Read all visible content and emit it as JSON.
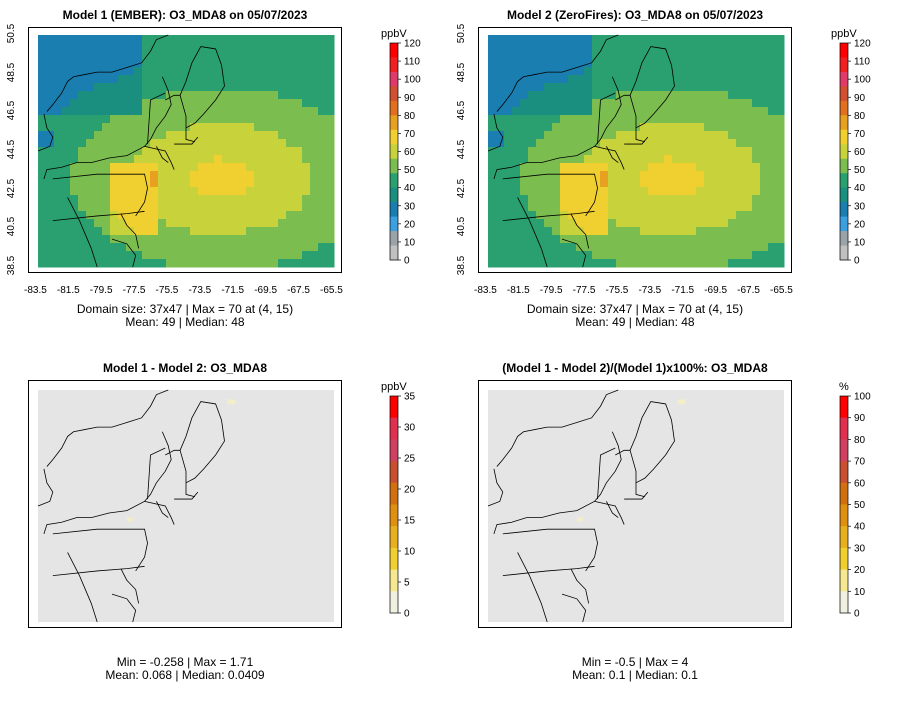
{
  "panels": [
    {
      "title": "Model 1 (EMBER): O3_MDA8 on 05/07/2023",
      "unit": "ppbV",
      "colorbar_ticks": [
        "120",
        "110",
        "100",
        "90",
        "80",
        "70",
        "60",
        "50",
        "40",
        "30",
        "20",
        "10",
        "0"
      ],
      "colorbar_palette": "ppb",
      "field": "concentration",
      "stats_line1": "Domain size: 37x47 | Max = 70 at (4, 15)",
      "stats_line2": "Mean: 49 |  Median: 48",
      "show_axes": true
    },
    {
      "title": "Model 2 (ZeroFires): O3_MDA8 on 05/07/2023",
      "unit": "ppbV",
      "colorbar_ticks": [
        "120",
        "110",
        "100",
        "90",
        "80",
        "70",
        "60",
        "50",
        "40",
        "30",
        "20",
        "10",
        "0"
      ],
      "colorbar_palette": "ppb",
      "field": "concentration",
      "stats_line1": "Domain size: 37x47 | Max = 70 at (4, 15)",
      "stats_line2": "Mean: 49 |  Median: 48",
      "show_axes": true
    },
    {
      "title": "Model 1 - Model 2: O3_MDA8",
      "unit": "ppbV",
      "colorbar_ticks": [
        "35",
        "30",
        "25",
        "20",
        "15",
        "10",
        "5",
        "0"
      ],
      "colorbar_palette": "diff",
      "field": "difference",
      "stats_line1": "Min = -0.258 | Max = 1.71",
      "stats_line2": "Mean: 0.068 |  Median: 0.0409",
      "show_axes": false
    },
    {
      "title": "(Model 1 - Model 2)/(Model 1)x100%: O3_MDA8",
      "unit": "%",
      "colorbar_ticks": [
        "100",
        "90",
        "80",
        "70",
        "60",
        "50",
        "40",
        "30",
        "20",
        "10",
        "0"
      ],
      "colorbar_palette": "diff",
      "field": "difference",
      "stats_line1": "Min = -0.5 | Max = 4",
      "stats_line2": "Mean: 0.1 |  Median: 0.1",
      "show_axes": false
    }
  ],
  "axes": {
    "x_ticks": [
      "-83.5",
      "-81.5",
      "-79.5",
      "-77.5",
      "-75.5",
      "-73.5",
      "-71.5",
      "-69.5",
      "-67.5",
      "-65.5"
    ],
    "y_ticks": [
      "38.5",
      "40.5",
      "42.5",
      "44.5",
      "46.5",
      "48.5",
      "50.5"
    ]
  },
  "colors": {
    "ppb_scale": [
      "#c0c0c0",
      "#9aa3a8",
      "#3aa0e0",
      "#1a7fb0",
      "#1a8f7f",
      "#2aa070",
      "#7cbd50",
      "#c8d23a",
      "#f0d030",
      "#e8a020",
      "#e07020",
      "#d05030",
      "#e03a6a",
      "#f02020",
      "#ff0000"
    ],
    "diff_scale": [
      "#f0f0e0",
      "#f5e890",
      "#f0d030",
      "#e8b020",
      "#e09010",
      "#d07010",
      "#c85030",
      "#d04060",
      "#e03050",
      "#ff0000"
    ],
    "no_change": "#e5e5e5"
  }
}
